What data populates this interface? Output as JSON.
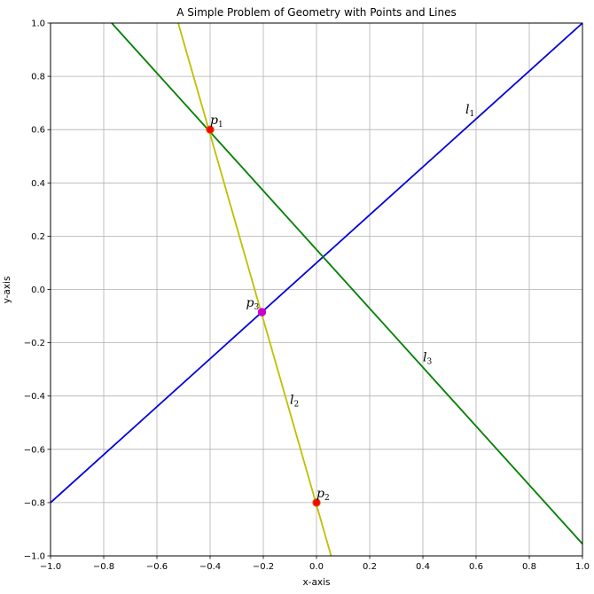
{
  "chart_data": {
    "type": "line",
    "title": "A Simple Problem of Geometry with Points and Lines",
    "xlabel": "x-axis",
    "ylabel": "y-axis",
    "xlim": [
      -1.0,
      1.0
    ],
    "ylim": [
      -1.0,
      1.0
    ],
    "grid": true,
    "x_ticks": [
      -1.0,
      -0.8,
      -0.6,
      -0.4,
      -0.2,
      0.0,
      0.2,
      0.4,
      0.6,
      0.8,
      1.0
    ],
    "x_tick_labels": [
      "−1.0",
      "−0.8",
      "−0.6",
      "−0.4",
      "−0.2",
      "0.0",
      "0.2",
      "0.4",
      "0.6",
      "0.8",
      "1.0"
    ],
    "y_ticks": [
      -1.0,
      -0.8,
      -0.6,
      -0.4,
      -0.2,
      0.0,
      0.2,
      0.4,
      0.6,
      0.8,
      1.0
    ],
    "y_tick_labels": [
      "−1.0",
      "−0.8",
      "−0.6",
      "−0.4",
      "−0.2",
      "0.0",
      "0.2",
      "0.4",
      "0.6",
      "0.8",
      "1.0"
    ],
    "lines": [
      {
        "name": "l1",
        "label_base": "l",
        "label_sub": "1",
        "color": "#0000dd",
        "points": [
          [
            -1.0,
            -0.8
          ],
          [
            1.0,
            1.0
          ]
        ],
        "label_at": [
          0.56,
          0.66
        ]
      },
      {
        "name": "l2",
        "label_base": "l",
        "label_sub": "2",
        "color": "#bfbf00",
        "points": [
          [
            -0.52,
            1.0
          ],
          [
            0.055,
            -1.0
          ]
        ],
        "label_at": [
          -0.1,
          -0.43
        ]
      },
      {
        "name": "l3",
        "label_base": "l",
        "label_sub": "3",
        "color": "#008000",
        "points": [
          [
            -0.77,
            1.0
          ],
          [
            1.0,
            -0.955
          ]
        ],
        "label_at": [
          0.4,
          -0.27
        ]
      }
    ],
    "points": [
      {
        "name": "p1",
        "label_base": "p",
        "label_sub": "1",
        "x": -0.4,
        "y": 0.6,
        "color": "#ff0000",
        "edge": "#cc6600",
        "label_at": [
          -0.4,
          0.62
        ]
      },
      {
        "name": "p2",
        "label_base": "p",
        "label_sub": "2",
        "x": 0.0,
        "y": -0.8,
        "color": "#ff0000",
        "edge": "#cc6600",
        "label_at": [
          0.0,
          -0.78
        ]
      },
      {
        "name": "p3",
        "label_base": "p",
        "label_sub": "3",
        "x": -0.205,
        "y": -0.085,
        "color": "#cc00cc",
        "edge": "#cc00cc",
        "label_at": [
          -0.265,
          -0.065
        ]
      }
    ]
  }
}
